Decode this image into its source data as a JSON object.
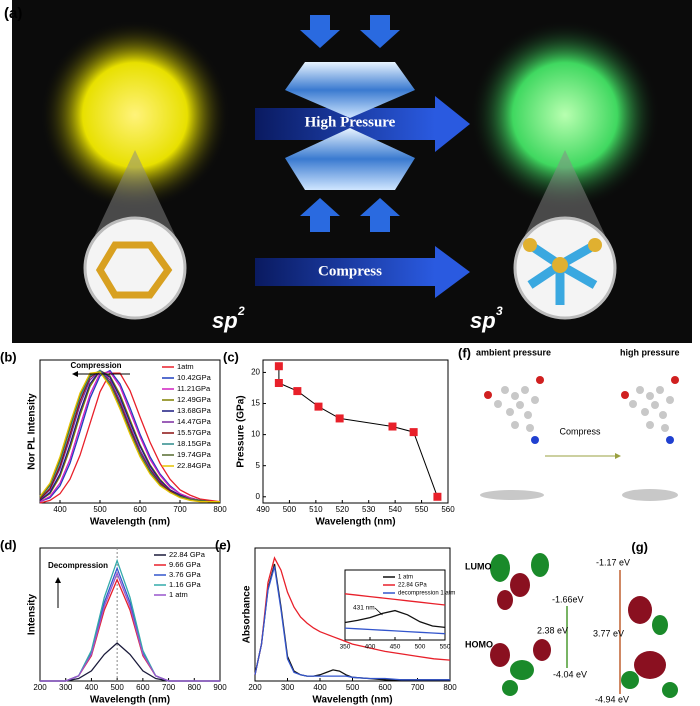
{
  "panel_a": {
    "label": "(a)",
    "arrow_top": "High Pressure",
    "arrow_bottom": "Compress",
    "left": "sp",
    "left_sup": "2",
    "right": "sp",
    "right_sup": "3"
  },
  "panel_f": {
    "label": "(f)",
    "left_title": "ambient pressure",
    "right_title": "high pressure",
    "arrow": "Compress"
  },
  "panel_g": {
    "label": "(g)",
    "lumo": "LUMO",
    "homo": "HOMO",
    "left_lumo": "-1.66eV",
    "left_gap": "2.38 eV",
    "left_homo": "-4.04 eV",
    "right_lumo": "-1.17 eV",
    "right_gap": "3.77 eV",
    "right_homo": "-4.94 eV"
  },
  "chart_data": [
    {
      "type": "line",
      "panel": "(b)",
      "x_label": "Wavelength (nm)",
      "y_label": "Nor PL Intensity",
      "annotation": "Compression",
      "x": [
        350,
        375,
        400,
        425,
        450,
        475,
        500,
        525,
        550,
        575,
        600,
        625,
        650,
        675,
        700,
        725,
        750,
        775,
        800
      ],
      "xlim": [
        350,
        800
      ],
      "xticks": [
        400,
        500,
        600,
        700,
        800
      ],
      "ylim": [
        0,
        1.08
      ],
      "legend": "upper right",
      "series": [
        {
          "name": "1atm",
          "color": "#e8202a",
          "values": [
            0,
            0.02,
            0.07,
            0.18,
            0.36,
            0.6,
            0.84,
            0.98,
            0.98,
            0.85,
            0.65,
            0.46,
            0.3,
            0.18,
            0.1,
            0.06,
            0.03,
            0.02,
            0.01
          ]
        },
        {
          "name": "10.42GPa",
          "color": "#1f3fbf",
          "values": [
            0.01,
            0.04,
            0.13,
            0.3,
            0.54,
            0.79,
            0.96,
            1.0,
            0.9,
            0.72,
            0.52,
            0.35,
            0.22,
            0.13,
            0.07,
            0.04,
            0.02,
            0.01,
            0.01
          ]
        },
        {
          "name": "11.21GPa",
          "color": "#d020c0",
          "values": [
            0.01,
            0.05,
            0.15,
            0.33,
            0.58,
            0.82,
            0.98,
            0.99,
            0.88,
            0.69,
            0.5,
            0.33,
            0.21,
            0.12,
            0.07,
            0.04,
            0.02,
            0.01,
            0.01
          ]
        },
        {
          "name": "12.49GPa",
          "color": "#808000",
          "values": [
            0.02,
            0.07,
            0.2,
            0.41,
            0.66,
            0.88,
            1.0,
            0.96,
            0.82,
            0.63,
            0.44,
            0.29,
            0.18,
            0.1,
            0.06,
            0.03,
            0.02,
            0.01,
            0.01
          ]
        },
        {
          "name": "13.68GPa",
          "color": "#1a1a80",
          "values": [
            0.02,
            0.08,
            0.22,
            0.44,
            0.69,
            0.9,
            1.0,
            0.95,
            0.8,
            0.61,
            0.43,
            0.28,
            0.17,
            0.1,
            0.06,
            0.03,
            0.02,
            0.01,
            0.01
          ]
        },
        {
          "name": "14.47GPa",
          "color": "#7a2aa0",
          "values": [
            0.03,
            0.1,
            0.26,
            0.49,
            0.74,
            0.93,
            1.0,
            0.93,
            0.77,
            0.58,
            0.4,
            0.26,
            0.16,
            0.09,
            0.05,
            0.03,
            0.02,
            0.01,
            0.01
          ]
        },
        {
          "name": "15.57GPa",
          "color": "#8b1010",
          "values": [
            0.03,
            0.11,
            0.28,
            0.52,
            0.77,
            0.95,
            1.0,
            0.91,
            0.75,
            0.56,
            0.38,
            0.25,
            0.15,
            0.09,
            0.05,
            0.03,
            0.02,
            0.01,
            0.01
          ]
        },
        {
          "name": "18.15GPa",
          "color": "#2e8b8b",
          "values": [
            0.04,
            0.13,
            0.31,
            0.56,
            0.8,
            0.96,
            1.0,
            0.9,
            0.73,
            0.54,
            0.37,
            0.24,
            0.14,
            0.08,
            0.05,
            0.03,
            0.02,
            0.01,
            0.01
          ]
        },
        {
          "name": "19.74GPa",
          "color": "#556b2f",
          "values": [
            0.04,
            0.14,
            0.33,
            0.58,
            0.82,
            0.97,
            0.99,
            0.89,
            0.72,
            0.53,
            0.36,
            0.23,
            0.14,
            0.08,
            0.05,
            0.03,
            0.02,
            0.01,
            0.01
          ]
        },
        {
          "name": "22.84GPa",
          "color": "#e6c200",
          "values": [
            0.05,
            0.15,
            0.35,
            0.6,
            0.83,
            0.98,
            0.99,
            0.88,
            0.71,
            0.52,
            0.35,
            0.22,
            0.13,
            0.08,
            0.04,
            0.02,
            0.01,
            0.01,
            0.01
          ]
        }
      ]
    },
    {
      "type": "scatter",
      "panel": "(c)",
      "x_label": "Wavelength (nm)",
      "y_label": "Pressure (GPa)",
      "xlim": [
        490,
        560
      ],
      "xticks": [
        490,
        500,
        510,
        520,
        530,
        540,
        550,
        560
      ],
      "ylim": [
        -1,
        22
      ],
      "yticks": [
        0,
        5,
        10,
        15,
        20
      ],
      "series": [
        {
          "name": null,
          "color": "#e8202a",
          "x": [
            496,
            496,
            503,
            511,
            519,
            539,
            547,
            556
          ],
          "values": [
            21,
            18.3,
            17,
            14.5,
            12.6,
            11.3,
            10.4,
            0
          ]
        }
      ]
    },
    {
      "type": "line",
      "panel": "(d)",
      "x_label": "Wavelength (nm)",
      "y_label": "Intensity",
      "annotation": "Decompression",
      "marker_x": 500,
      "x": [
        200,
        250,
        300,
        350,
        400,
        450,
        500,
        550,
        600,
        650,
        700,
        750,
        800,
        850,
        900
      ],
      "xlim": [
        200,
        900
      ],
      "xticks": [
        200,
        300,
        400,
        500,
        600,
        700,
        800,
        900
      ],
      "ylim": [
        0,
        1.05
      ],
      "legend": "upper right",
      "series": [
        {
          "name": "22.84 GPa",
          "color": "#1a1a3a",
          "values": [
            0,
            0,
            0,
            0.02,
            0.08,
            0.21,
            0.3,
            0.21,
            0.08,
            0.02,
            0,
            0,
            0,
            0,
            0
          ]
        },
        {
          "name": "9.66 GPa",
          "color": "#e8202a",
          "values": [
            0,
            0,
            0,
            0.04,
            0.2,
            0.56,
            0.8,
            0.56,
            0.2,
            0.04,
            0,
            0,
            0,
            0,
            0
          ]
        },
        {
          "name": "3.76 GPa",
          "color": "#3355cc",
          "values": [
            0,
            0,
            0,
            0.04,
            0.22,
            0.62,
            0.89,
            0.62,
            0.22,
            0.04,
            0,
            0,
            0,
            0,
            0
          ]
        },
        {
          "name": "1.16 GPa",
          "color": "#33aaaa",
          "values": [
            0,
            0,
            0,
            0.04,
            0.24,
            0.66,
            0.95,
            0.66,
            0.24,
            0.04,
            0,
            0,
            0,
            0,
            0
          ]
        },
        {
          "name": "1 atm",
          "color": "#9955cc",
          "values": [
            0,
            0,
            0,
            0.04,
            0.21,
            0.59,
            0.85,
            0.59,
            0.21,
            0.04,
            0,
            0,
            0,
            0,
            0
          ]
        }
      ]
    },
    {
      "type": "line",
      "panel": "(e)",
      "x_label": "Wavelength (nm)",
      "y_label": "Absorbance",
      "x": [
        200,
        220,
        240,
        260,
        280,
        300,
        320,
        340,
        360,
        380,
        400,
        420,
        440,
        460,
        480,
        500,
        550,
        600,
        650,
        700,
        750,
        800
      ],
      "xlim": [
        200,
        800
      ],
      "xticks": [
        200,
        300,
        400,
        500,
        600,
        700,
        800
      ],
      "ylim": [
        0,
        1.08
      ],
      "series": [
        {
          "name": "1 atm",
          "color": "#111111",
          "values": [
            0.05,
            0.3,
            0.75,
            0.95,
            0.6,
            0.2,
            0.08,
            0.05,
            0.04,
            0.04,
            0.05,
            0.07,
            0.09,
            0.08,
            0.05,
            0.03,
            0.02,
            0.01,
            0.01,
            0.01,
            0.01,
            0.01
          ]
        },
        {
          "name": "22.84 GPa",
          "color": "#e8202a",
          "values": [
            0.05,
            0.3,
            0.8,
            1.0,
            0.9,
            0.72,
            0.6,
            0.52,
            0.47,
            0.43,
            0.4,
            0.38,
            0.36,
            0.34,
            0.32,
            0.3,
            0.27,
            0.24,
            0.22,
            0.2,
            0.18,
            0.17
          ]
        },
        {
          "name": "decompression 1 atm",
          "color": "#3355cc",
          "values": [
            0.05,
            0.3,
            0.74,
            0.93,
            0.58,
            0.18,
            0.07,
            0.05,
            0.04,
            0.04,
            0.04,
            0.04,
            0.04,
            0.04,
            0.04,
            0.03,
            0.02,
            0.02,
            0.01,
            0.01,
            0.01,
            0.01
          ]
        }
      ]
    },
    {
      "type": "line",
      "annotation": "431 nm",
      "x": [
        350,
        375,
        400,
        425,
        450,
        475,
        500,
        525,
        550
      ],
      "xlim": [
        350,
        550
      ],
      "xticks": [
        350,
        400,
        450,
        500,
        550
      ],
      "ylim": [
        0,
        1
      ],
      "legend": "upper right",
      "series": [
        {
          "name": "1 atm",
          "color": "#111111",
          "values": [
            0.25,
            0.28,
            0.32,
            0.38,
            0.42,
            0.36,
            0.26,
            0.2,
            0.18
          ]
        },
        {
          "name": "22.84 GPa",
          "color": "#e8202a",
          "values": [
            0.66,
            0.64,
            0.62,
            0.6,
            0.58,
            0.56,
            0.54,
            0.52,
            0.5
          ]
        },
        {
          "name": "decompression 1 atm",
          "color": "#3355cc",
          "values": [
            0.17,
            0.16,
            0.15,
            0.14,
            0.13,
            0.12,
            0.11,
            0.1,
            0.09
          ]
        }
      ]
    }
  ]
}
